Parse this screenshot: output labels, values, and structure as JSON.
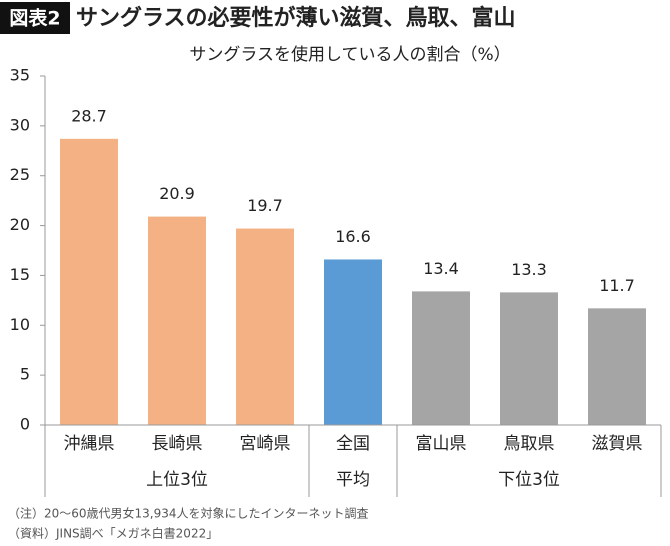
{
  "chart_data": {
    "type": "bar",
    "figure_label": "図表2",
    "title": "サングラスの必要性が薄い滋賀、鳥取、富山",
    "subtitle": "サングラスを使用している人の割合（%）",
    "categories": [
      "沖縄県",
      "長崎県",
      "宮崎県",
      "全国",
      "富山県",
      "鳥取県",
      "滋賀県"
    ],
    "values": [
      28.7,
      20.9,
      19.7,
      16.6,
      13.4,
      13.3,
      11.7
    ],
    "colors": [
      "#f4b183",
      "#f4b183",
      "#f4b183",
      "#5b9bd5",
      "#a5a5a5",
      "#a5a5a5",
      "#a5a5a5"
    ],
    "groups": [
      {
        "label": "上位3位",
        "count": 3
      },
      {
        "label": "平均",
        "count": 1
      },
      {
        "label": "下位3位",
        "count": 3
      }
    ],
    "ylim": [
      0,
      35
    ],
    "yticks": [
      0,
      5,
      10,
      15,
      20,
      25,
      30,
      35
    ],
    "grid": false,
    "notes": [
      "（注）20～60歳代男女13,934人を対象にしたインターネット調査",
      "（資料）JINS調べ「メガネ白書2022」"
    ]
  }
}
